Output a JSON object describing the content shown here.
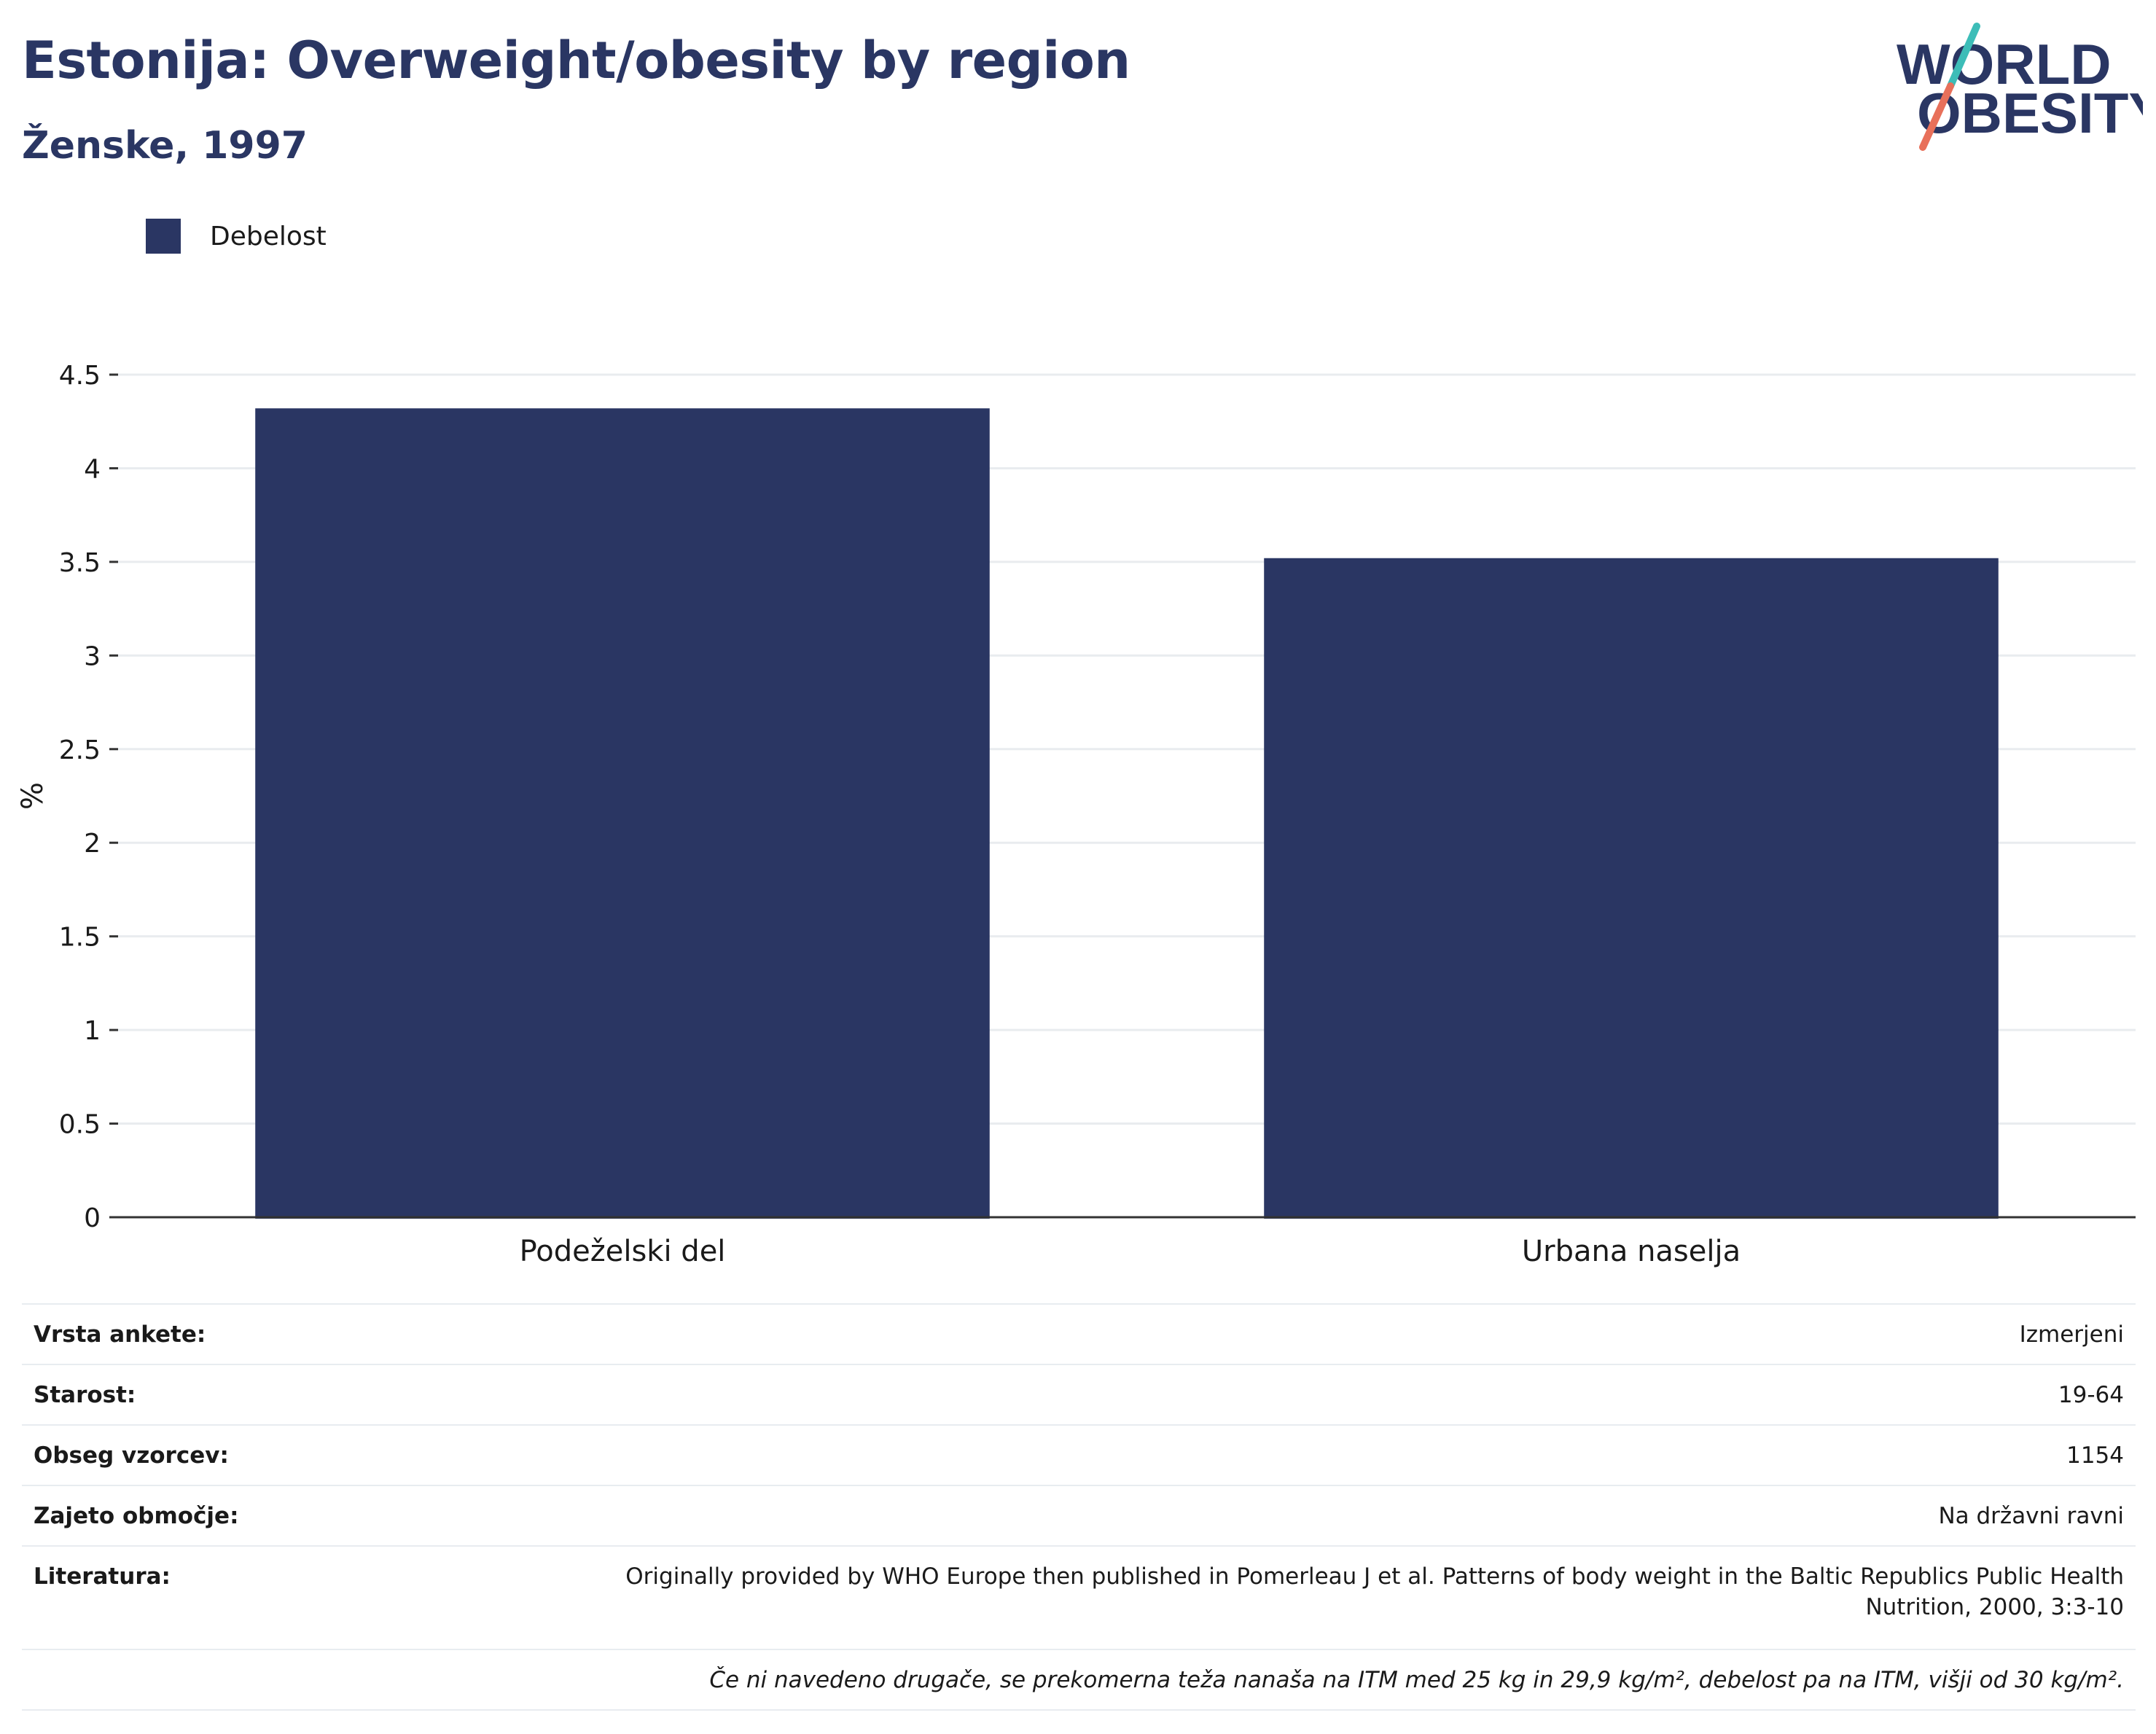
{
  "header": {
    "title": "Estonija: Overweight/obesity by region",
    "subtitle": "Ženske, 1997"
  },
  "logo": {
    "line1": "WORLD",
    "line2": "OBESITY",
    "colors": {
      "text": "#2a3663",
      "slash_top": "#3dbdb8",
      "slash_bottom": "#e8705a"
    }
  },
  "chart_data": {
    "type": "bar",
    "categories": [
      "Podeželski del",
      "Urbana naselja"
    ],
    "series": [
      {
        "name": "Debelost",
        "values": [
          4.32,
          3.52
        ],
        "color": "#2a3663"
      }
    ],
    "ylabel": "%",
    "ylim": [
      0,
      4.5
    ],
    "yticks": [
      0,
      0.5,
      1,
      1.5,
      2,
      2.5,
      3,
      3.5,
      4,
      4.5
    ],
    "ytick_labels": [
      "0",
      "0.5",
      "1",
      "1.5",
      "2",
      "2.5",
      "3",
      "3.5",
      "4",
      "4.5"
    ],
    "grid": true,
    "legend_position": "top-left"
  },
  "info": [
    {
      "label": "Vrsta ankete:",
      "value": "Izmerjeni"
    },
    {
      "label": "Starost:",
      "value": "19-64"
    },
    {
      "label": "Obseg vzorcev:",
      "value": "1154"
    },
    {
      "label": "Zajeto območje:",
      "value": "Na državni ravni"
    },
    {
      "label": "Literatura:",
      "value_line1": "Originally provided by WHO Europe then published in Pomerleau J et al. Patterns of body weight in the Baltic Republics Public Health",
      "value_line2": "Nutrition, 2000, 3:3-10"
    }
  ],
  "footnote": "Če ni navedeno drugače, se prekomerna teža nanaša na ITM med 25 kg in 29,9 kg/m², debelost pa na ITM, višji od 30 kg/m²."
}
